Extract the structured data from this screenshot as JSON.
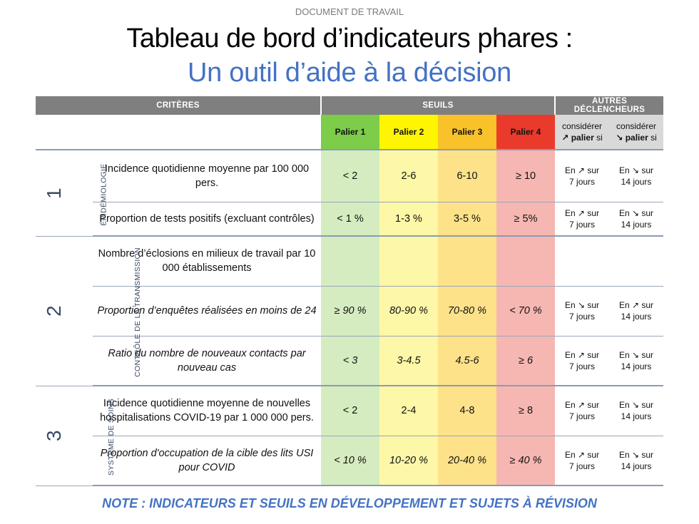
{
  "doc_label": "DOCUMENT DE TRAVAIL",
  "title": "Tableau de bord d’indicateurs phares :",
  "subtitle": "Un outil d’aide à la décision",
  "headers": {
    "criteria": "CRITÈRES",
    "thresholds": "SEUILS",
    "other_triggers": "AUTRES DÉCLENCHEURS"
  },
  "levels": [
    "Palier 1",
    "Palier 2",
    "Palier 3",
    "Palier 4"
  ],
  "level_colors": [
    "#7dcc4a",
    "#fdf600",
    "#f9c22a",
    "#ea3a2c"
  ],
  "trigger_headers": {
    "up_line1": "considérer",
    "up_arrow": "↗",
    "up_bold": "palier",
    "up_suffix": "si",
    "down_line1": "considérer",
    "down_arrow": "↘",
    "down_bold": "palier",
    "down_suffix": "si"
  },
  "groups": [
    {
      "number": "1",
      "label": "ÉPIDÉMIOLOGIE",
      "rows": [
        {
          "criterion": "Incidence quotidienne moyenne par 100 000 pers.",
          "values": [
            "< 2",
            "2-6",
            "6-10",
            "≥ 10"
          ],
          "trigger_up": {
            "line1": "En ↗ sur",
            "line2": "7 jours"
          },
          "trigger_down": {
            "line1": "En ↘ sur",
            "line2": "14 jours"
          }
        },
        {
          "criterion": "Proportion de tests positifs (excluant contrôles)",
          "values": [
            "< 1 %",
            "1-3 %",
            "3-5 %",
            "≥ 5%"
          ],
          "trigger_up": {
            "line1": "En ↗ sur",
            "line2": "7 jours"
          },
          "trigger_down": {
            "line1": "En ↘ sur",
            "line2": "14 jours"
          }
        }
      ]
    },
    {
      "number": "2",
      "label": "CONTRÔLE DE LA TRANSMISSION",
      "rows": [
        {
          "criterion": "Nombre d’éclosions en milieux de travail par 10 000 établissements",
          "values": [
            "",
            "",
            "",
            ""
          ],
          "trigger_up": {
            "line1": "",
            "line2": ""
          },
          "trigger_down": {
            "line1": "",
            "line2": ""
          }
        },
        {
          "criterion": "Proportion d’enquêtes réalisées en moins de 24",
          "values": [
            "≥ 90 %",
            "80-90 %",
            "70-80 %",
            "< 70 %"
          ],
          "trigger_up": {
            "line1": "En ↘ sur",
            "line2": "7 jours"
          },
          "trigger_down": {
            "line1": "En ↗ sur",
            "line2": "14 jours"
          }
        },
        {
          "criterion": "Ratio du nombre de nouveaux contacts par nouveau cas",
          "values": [
            "< 3",
            "3-4.5",
            "4.5-6",
            "≥ 6"
          ],
          "trigger_up": {
            "line1": "En ↗ sur",
            "line2": "7 jours"
          },
          "trigger_down": {
            "line1": "En ↘ sur",
            "line2": "14 jours"
          }
        }
      ]
    },
    {
      "number": "3",
      "label": "SYSTÈME DE SOINS",
      "rows": [
        {
          "criterion": "Incidence quotidienne moyenne de nouvelles hospitalisations COVID-19 par 1 000 000 pers.",
          "values": [
            "< 2",
            "2-4",
            "4-8",
            "≥ 8"
          ],
          "trigger_up": {
            "line1": "En ↗ sur",
            "line2": "7 jours"
          },
          "trigger_down": {
            "line1": "En ↘ sur",
            "line2": "14 jours"
          }
        },
        {
          "criterion": "Proportion d'occupation de la cible des lits USI pour COVID",
          "values": [
            "< 10 %",
            "10-20 %",
            "20-40 %",
            "≥ 40 %"
          ],
          "trigger_up": {
            "line1": "En ↗ sur",
            "line2": "7 jours"
          },
          "trigger_down": {
            "line1": "En ↘ sur",
            "line2": "14 jours"
          }
        }
      ]
    }
  ],
  "note": "NOTE : INDICATEURS ET SEUILS EN DÉVELOPPEMENT ET SUJETS À RÉVISION"
}
